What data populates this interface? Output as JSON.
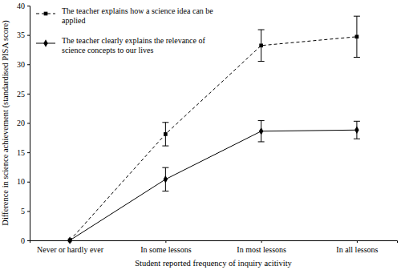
{
  "chart_data": {
    "type": "line",
    "x_label": "Student reported frequency of inquiry acitivity",
    "y_label": "Difference in science achievement (standardised PISA score)",
    "categories": [
      "Never or hardly ever",
      "In some lessons",
      "In most lessons",
      "In all lessons"
    ],
    "series": [
      {
        "name": "The teacher explains how a science idea can be applied",
        "color": "#000000",
        "line_style": "dashed",
        "marker": "square",
        "values": [
          0,
          18.1,
          33.2,
          34.7
        ],
        "errors": [
          null,
          2.0,
          2.7,
          3.5
        ]
      },
      {
        "name": "The teacher clearly explains the relevance of science concepts to our lives",
        "color": "#000000",
        "line_style": "solid",
        "marker": "diamond",
        "values": [
          0,
          10.4,
          18.6,
          18.8
        ],
        "errors": [
          null,
          2.0,
          1.8,
          1.5
        ]
      }
    ],
    "ylim": [
      0,
      40
    ],
    "yticks": [
      0,
      5,
      10,
      15,
      20,
      25,
      30,
      35,
      40
    ],
    "legend": "top-left",
    "grid": false
  }
}
